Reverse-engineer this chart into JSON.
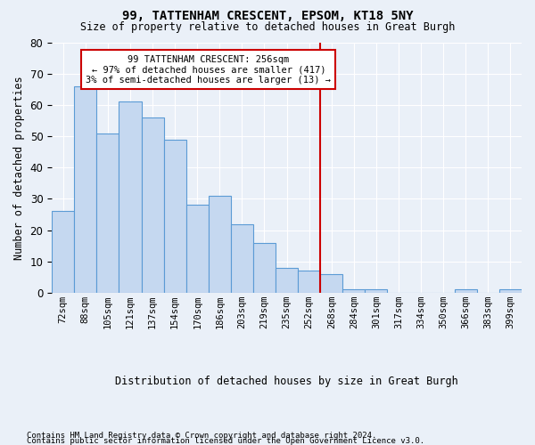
{
  "title1": "99, TATTENHAM CRESCENT, EPSOM, KT18 5NY",
  "title2": "Size of property relative to detached houses in Great Burgh",
  "xlabel": "Distribution of detached houses by size in Great Burgh",
  "ylabel": "Number of detached properties",
  "bins": [
    "72sqm",
    "88sqm",
    "105sqm",
    "121sqm",
    "137sqm",
    "154sqm",
    "170sqm",
    "186sqm",
    "203sqm",
    "219sqm",
    "235sqm",
    "252sqm",
    "268sqm",
    "284sqm",
    "301sqm",
    "317sqm",
    "334sqm",
    "350sqm",
    "366sqm",
    "383sqm",
    "399sqm"
  ],
  "values": [
    26,
    66,
    51,
    61,
    56,
    49,
    28,
    31,
    22,
    16,
    8,
    7,
    6,
    1,
    1,
    0,
    0,
    0,
    1,
    0,
    1
  ],
  "bar_color": "#c5d8f0",
  "bar_edge_color": "#5b9bd5",
  "vline_x_index": 11.5,
  "vline_color": "#cc0000",
  "annotation_text": "99 TATTENHAM CRESCENT: 256sqm\n← 97% of detached houses are smaller (417)\n3% of semi-detached houses are larger (13) →",
  "annotation_box_color": "#cc0000",
  "ylim": [
    0,
    80
  ],
  "yticks": [
    0,
    10,
    20,
    30,
    40,
    50,
    60,
    70,
    80
  ],
  "background_color": "#eaf0f8",
  "grid_color": "#ffffff",
  "footer1": "Contains HM Land Registry data © Crown copyright and database right 2024.",
  "footer2": "Contains public sector information licensed under the Open Government Licence v3.0."
}
